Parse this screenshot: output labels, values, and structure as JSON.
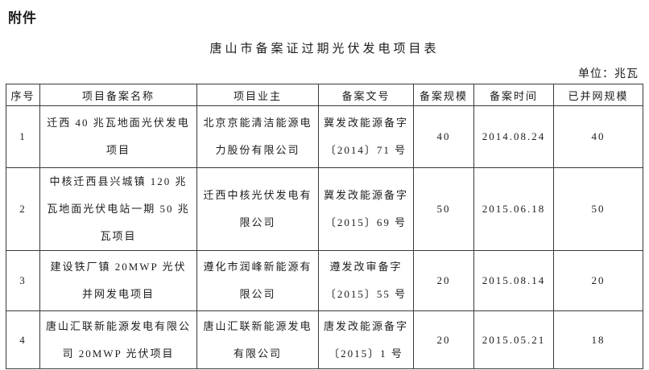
{
  "page": {
    "attachment_label": "附件",
    "title": "唐山市备案证过期光伏发电项目表",
    "unit_label": "单位：兆瓦"
  },
  "table": {
    "columns": [
      "序号",
      "项目备案名称",
      "项目业主",
      "备案文号",
      "备案规模",
      "备案时间",
      "已并网规模"
    ],
    "rows": [
      {
        "no": "1",
        "project_name": "迁西 40 兆瓦地面光伏发电项目",
        "owner": "北京京能清洁能源电力股份有限公司",
        "doc_no": "冀发改能源备字〔2014〕71 号",
        "filed_capacity": "40",
        "filing_date": "2014.08.24",
        "grid_capacity": "40"
      },
      {
        "no": "2",
        "project_name": "中核迁西县兴城镇 120 兆瓦地面光伏电站一期 50 兆瓦项目",
        "owner": "迁西中核光伏发电有限公司",
        "doc_no": "冀发改能源备字〔2015〕69 号",
        "filed_capacity": "50",
        "filing_date": "2015.06.18",
        "grid_capacity": "50"
      },
      {
        "no": "3",
        "project_name": "建设铁厂镇 20MWP 光伏并网发电项目",
        "owner": "遵化市润峰新能源有限公司",
        "doc_no": "遵发改审备字〔2015〕55 号",
        "filed_capacity": "20",
        "filing_date": "2015.08.14",
        "grid_capacity": "20"
      },
      {
        "no": "4",
        "project_name": "唐山汇联新能源发电有限公司 20MWP 光伏项目",
        "owner": "唐山汇联新能源发电有限公司",
        "doc_no": "唐发改能源备字〔2015〕1 号",
        "filed_capacity": "20",
        "filing_date": "2015.05.21",
        "grid_capacity": "18"
      }
    ]
  }
}
